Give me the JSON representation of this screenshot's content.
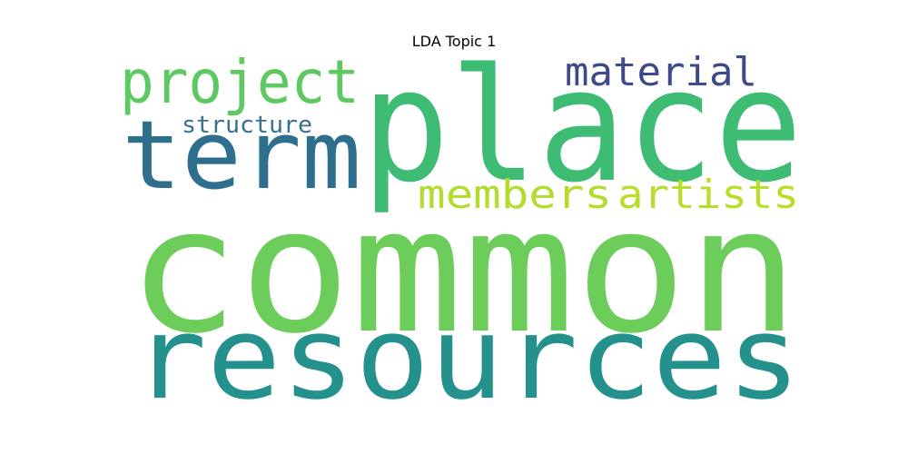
{
  "title": "LDA Topic 1",
  "words": [
    {
      "text": "common",
      "color": "#6ccd5a"
    },
    {
      "text": "resources",
      "color": "#24918c"
    },
    {
      "text": "place",
      "color": "#3fbc73"
    },
    {
      "text": "term",
      "color": "#2e6f8e"
    },
    {
      "text": "project",
      "color": "#5ec962"
    },
    {
      "text": "material",
      "color": "#3e4989"
    },
    {
      "text": "members",
      "color": "#b2dd2d"
    },
    {
      "text": "artists",
      "color": "#b8de29"
    },
    {
      "text": "structure",
      "color": "#3b6f8f"
    }
  ]
}
